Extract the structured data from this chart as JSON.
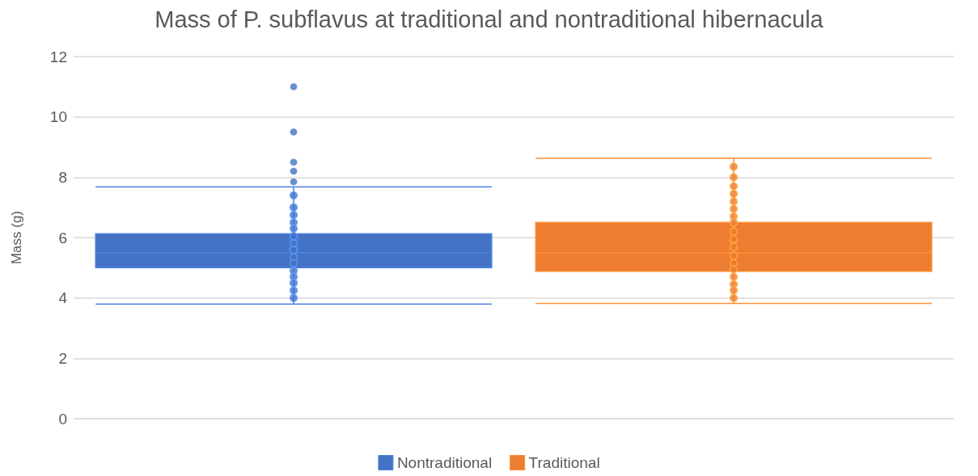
{
  "chart_data": {
    "type": "box",
    "title": "Mass of P. subflavus at traditional and nontraditional hibernacula",
    "ylabel": "Mass (g)",
    "categories": [
      null,
      null
    ],
    "series": [
      {
        "name": "Nontraditional",
        "color": "#4472c4",
        "boxes": [
          {
            "low": 3.8,
            "q1": 5.0,
            "median": 5.5,
            "q3": 6.13,
            "high": 7.68,
            "mean": 5.78,
            "outliers": [
              11.0,
              9.5,
              8.5,
              8.2,
              7.85
            ]
          },
          null
        ]
      },
      {
        "name": "Traditional",
        "color": "#ed7d31",
        "boxes": [
          null,
          {
            "low": 3.82,
            "q1": 4.88,
            "median": 5.5,
            "q3": 6.5,
            "high": 8.63,
            "mean": 5.75
          }
        ]
      },
      {
        "type": "scatter",
        "colors": [
          "#4472c4",
          "#ed7d31"
        ],
        "values": [
          7.4,
          8.35
        ]
      },
      {
        "type": "scatter",
        "colors": [
          "#4472c4",
          "#ed7d31"
        ],
        "values": [
          7.0,
          8.0
        ]
      },
      {
        "type": "scatter",
        "colors": [
          "#4472c4",
          "#ed7d31"
        ],
        "values": [
          6.75,
          7.7
        ]
      },
      {
        "type": "scatter",
        "colors": [
          "#4472c4",
          "#ed7d31"
        ],
        "values": [
          6.5,
          7.45
        ]
      },
      {
        "type": "scatter",
        "colors": [
          "#4472c4",
          "#ed7d31"
        ],
        "values": [
          6.3,
          7.2
        ]
      },
      {
        "type": "scatter",
        "colors": [
          "#4472c4",
          "#ed7d31"
        ],
        "values": [
          6.05,
          6.95
        ]
      },
      {
        "type": "scatter",
        "colors": [
          "#4472c4",
          "#ed7d31"
        ],
        "values": [
          5.8,
          6.7
        ]
      },
      {
        "type": "scatter",
        "colors": [
          "#4472c4",
          "#ed7d31"
        ],
        "values": [
          5.6,
          6.5
        ]
      },
      {
        "type": "scatter",
        "colors": [
          "#4472c4",
          "#ed7d31"
        ],
        "values": [
          5.35,
          6.2
        ]
      },
      {
        "type": "scatter",
        "colors": [
          "#4472c4",
          "#ed7d31"
        ],
        "values": [
          5.15,
          5.95
        ]
      },
      {
        "type": "scatter",
        "colors": [
          "#4472c4",
          "#ed7d31"
        ],
        "values": [
          4.9,
          5.7
        ]
      },
      {
        "type": "scatter",
        "colors": [
          "#4472c4",
          "#ed7d31"
        ],
        "values": [
          4.7,
          5.4
        ]
      },
      {
        "type": "scatter",
        "colors": [
          "#4472c4",
          "#ed7d31"
        ],
        "values": [
          4.5,
          5.15
        ]
      },
      {
        "type": "scatter",
        "colors": [
          "#4472c4",
          "#ed7d31"
        ],
        "values": [
          4.25,
          4.95
        ]
      },
      {
        "type": "scatter",
        "colors": [
          "#4472c4",
          "#ed7d31"
        ],
        "values": [
          4.0,
          4.7
        ]
      },
      {
        "type": "scatter",
        "colors": [
          "#4472c4",
          "#ed7d31"
        ],
        "values": [
          null,
          4.45
        ]
      },
      {
        "type": "scatter",
        "colors": [
          "#4472c4",
          "#ed7d31"
        ],
        "values": [
          null,
          4.25
        ]
      },
      {
        "type": "scatter",
        "colors": [
          "#4472c4",
          "#ed7d31"
        ],
        "values": [
          null,
          4.0
        ]
      }
    ],
    "ylim": [
      0,
      12
    ],
    "yticks": [
      0,
      2,
      4,
      6,
      8,
      10,
      12
    ],
    "grid": "y",
    "legend": "bottom",
    "tick_labels": "y",
    "marker": "circle"
  }
}
